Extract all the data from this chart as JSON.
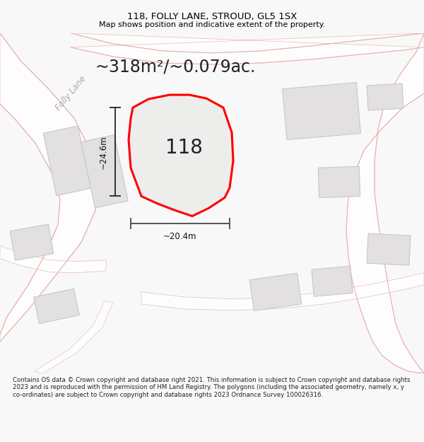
{
  "title": "118, FOLLY LANE, STROUD, GL5 1SX",
  "subtitle": "Map shows position and indicative extent of the property.",
  "area_label": "~318m²/~0.079ac.",
  "number_label": "118",
  "dim_vertical": "~24.6m",
  "dim_horizontal": "~20.4m",
  "street_label": "Folly Lane",
  "footer": "Contains OS data © Crown copyright and database right 2021. This information is subject to Crown copyright and database rights 2023 and is reproduced with the permission of HM Land Registry. The polygons (including the associated geometry, namely x, y co-ordinates) are subject to Crown copyright and database rights 2023 Ordnance Survey 100026316.",
  "bg_color": "#f8f8f8",
  "map_bg": "#f2f0f0",
  "plot_color_edge": "#ff0000",
  "plot_color_fill": "#ededec",
  "road_color": "#f5c8c8",
  "road_edge": "#e8a8a8",
  "building_fill": "#e2e0e0",
  "building_edge": "#c8c8c8",
  "dim_line_color": "#333333",
  "title_fontsize": 9.5,
  "subtitle_fontsize": 8,
  "area_fontsize": 17,
  "number_fontsize": 20,
  "street_fontsize": 8.5,
  "dim_fontsize": 8.5,
  "footer_fontsize": 6.2
}
